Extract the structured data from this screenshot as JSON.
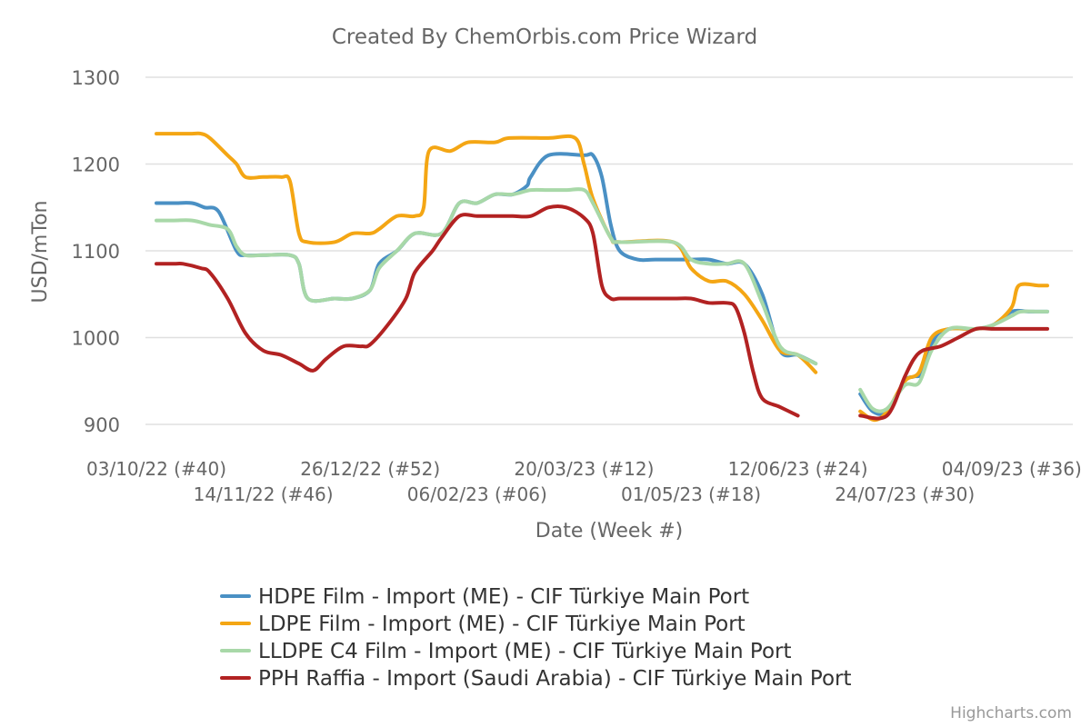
{
  "chart_data": {
    "type": "line",
    "title": "Created By ChemOrbis.com Price Wizard",
    "xlabel": "Date (Week #)",
    "ylabel": "USD/mTon",
    "ylim": [
      900,
      1300
    ],
    "yticks": [
      900,
      1000,
      1100,
      1200,
      1300
    ],
    "grid": true,
    "legend_position": "bottom-center",
    "credits": "Highcharts.com",
    "x_tick_labels": [
      {
        "week": 0,
        "label": "03/10/22 (#40)"
      },
      {
        "week": 6,
        "label": "14/11/22 (#46)"
      },
      {
        "week": 12,
        "label": "26/12/22 (#52)"
      },
      {
        "week": 18,
        "label": "06/02/23 (#06)"
      },
      {
        "week": 24,
        "label": "20/03/23 (#12)"
      },
      {
        "week": 30,
        "label": "01/05/23 (#18)"
      },
      {
        "week": 36,
        "label": "12/06/23 (#24)"
      },
      {
        "week": 42,
        "label": "24/07/23 (#30)"
      },
      {
        "week": 48,
        "label": "04/09/23 (#36)"
      }
    ],
    "x_range_weeks": [
      0,
      50
    ],
    "series": [
      {
        "name": "HDPE Film - Import (ME) - CIF Türkiye Main Port",
        "color": "#4a90c4",
        "points": [
          [
            0,
            1155
          ],
          [
            1,
            1155
          ],
          [
            2,
            1155
          ],
          [
            2.7,
            1150
          ],
          [
            3.5,
            1145
          ],
          [
            4.5,
            1100
          ],
          [
            5,
            1095
          ],
          [
            6,
            1095
          ],
          [
            7.5,
            1095
          ],
          [
            8,
            1085
          ],
          [
            8.5,
            1045
          ],
          [
            10,
            1045
          ],
          [
            11,
            1045
          ],
          [
            12,
            1055
          ],
          [
            12.5,
            1085
          ],
          [
            13.5,
            1100
          ],
          [
            14.5,
            1120
          ],
          [
            16,
            1120
          ],
          [
            17,
            1155
          ],
          [
            18,
            1155
          ],
          [
            19,
            1165
          ],
          [
            20,
            1165
          ],
          [
            20.8,
            1175
          ],
          [
            21,
            1185
          ],
          [
            22,
            1210
          ],
          [
            24,
            1210
          ],
          [
            24.5,
            1210
          ],
          [
            25,
            1185
          ],
          [
            25.5,
            1130
          ],
          [
            26,
            1100
          ],
          [
            27,
            1090
          ],
          [
            28,
            1090
          ],
          [
            30,
            1090
          ],
          [
            31,
            1090
          ],
          [
            32,
            1085
          ],
          [
            33,
            1085
          ],
          [
            34,
            1050
          ],
          [
            35,
            985
          ],
          [
            36,
            980
          ],
          [
            37,
            970
          ],
          null,
          [
            39.5,
            935
          ],
          [
            40.2,
            915
          ],
          [
            41,
            915
          ],
          [
            42,
            950
          ],
          [
            42.5,
            955
          ],
          [
            43,
            960
          ],
          [
            43.7,
            1000
          ],
          [
            44.5,
            1010
          ],
          [
            46,
            1010
          ],
          [
            47,
            1015
          ],
          [
            48,
            1030
          ],
          [
            49,
            1030
          ],
          [
            50,
            1030
          ]
        ]
      },
      {
        "name": "LDPE Film - Import (ME) - CIF Türkiye Main Port",
        "color": "#f4a614",
        "points": [
          [
            0,
            1235
          ],
          [
            1,
            1235
          ],
          [
            2,
            1235
          ],
          [
            2.5,
            1235
          ],
          [
            3,
            1230
          ],
          [
            4,
            1210
          ],
          [
            4.5,
            1200
          ],
          [
            5,
            1185
          ],
          [
            6,
            1185
          ],
          [
            7,
            1185
          ],
          [
            7.5,
            1180
          ],
          [
            8,
            1120
          ],
          [
            8.5,
            1110
          ],
          [
            10,
            1110
          ],
          [
            11,
            1120
          ],
          [
            12,
            1120
          ],
          [
            12.5,
            1125
          ],
          [
            13.5,
            1140
          ],
          [
            14.5,
            1140
          ],
          [
            15,
            1150
          ],
          [
            15.3,
            1215
          ],
          [
            16.5,
            1215
          ],
          [
            17.5,
            1225
          ],
          [
            19,
            1225
          ],
          [
            19.8,
            1230
          ],
          [
            22,
            1230
          ],
          [
            23.5,
            1230
          ],
          [
            24,
            1200
          ],
          [
            24.5,
            1160
          ],
          [
            25.5,
            1115
          ],
          [
            26,
            1110
          ],
          [
            29,
            1110
          ],
          [
            30,
            1080
          ],
          [
            31,
            1065
          ],
          [
            32,
            1065
          ],
          [
            33,
            1050
          ],
          [
            34,
            1020
          ],
          [
            35,
            985
          ],
          [
            36,
            980
          ],
          [
            37,
            960
          ],
          null,
          [
            39.5,
            915
          ],
          [
            40.3,
            905
          ],
          [
            41,
            915
          ],
          [
            42,
            950
          ],
          [
            42.8,
            960
          ],
          [
            43.5,
            1000
          ],
          [
            44.5,
            1010
          ],
          [
            46,
            1010
          ],
          [
            47,
            1015
          ],
          [
            48,
            1035
          ],
          [
            48.4,
            1060
          ],
          [
            49.5,
            1060
          ],
          [
            50,
            1060
          ]
        ]
      },
      {
        "name": "LLDPE C4 Film - Import (ME) - CIF Türkiye Main Port",
        "color": "#a8d8a8",
        "points": [
          [
            0,
            1135
          ],
          [
            1,
            1135
          ],
          [
            2,
            1135
          ],
          [
            3,
            1130
          ],
          [
            4,
            1125
          ],
          [
            4.5,
            1105
          ],
          [
            5,
            1095
          ],
          [
            6,
            1095
          ],
          [
            7.5,
            1095
          ],
          [
            8,
            1085
          ],
          [
            8.5,
            1045
          ],
          [
            10,
            1045
          ],
          [
            11,
            1045
          ],
          [
            12,
            1055
          ],
          [
            12.5,
            1080
          ],
          [
            13.5,
            1100
          ],
          [
            14.5,
            1120
          ],
          [
            16,
            1120
          ],
          [
            17,
            1155
          ],
          [
            18,
            1155
          ],
          [
            19,
            1165
          ],
          [
            20,
            1165
          ],
          [
            21,
            1170
          ],
          [
            22,
            1170
          ],
          [
            23,
            1170
          ],
          [
            24,
            1170
          ],
          [
            24.5,
            1155
          ],
          [
            25.5,
            1115
          ],
          [
            26,
            1110
          ],
          [
            29,
            1110
          ],
          [
            30,
            1090
          ],
          [
            31,
            1085
          ],
          [
            32,
            1085
          ],
          [
            33,
            1085
          ],
          [
            34,
            1040
          ],
          [
            35,
            990
          ],
          [
            36,
            980
          ],
          [
            37,
            970
          ],
          null,
          [
            39.5,
            940
          ],
          [
            40.2,
            918
          ],
          [
            41,
            918
          ],
          [
            42,
            945
          ],
          [
            42.8,
            948
          ],
          [
            43.5,
            985
          ],
          [
            44.5,
            1010
          ],
          [
            46,
            1010
          ],
          [
            47,
            1015
          ],
          [
            48,
            1025
          ],
          [
            48.5,
            1030
          ],
          [
            49.5,
            1030
          ],
          [
            50,
            1030
          ]
        ]
      },
      {
        "name": "PPH Raffia - Import (Saudi Arabia) - CIF Türkiye Main Port",
        "color": "#b22222",
        "points": [
          [
            0,
            1085
          ],
          [
            1,
            1085
          ],
          [
            1.5,
            1085
          ],
          [
            2.5,
            1080
          ],
          [
            3,
            1075
          ],
          [
            4,
            1045
          ],
          [
            5,
            1005
          ],
          [
            6,
            985
          ],
          [
            7,
            980
          ],
          [
            8,
            970
          ],
          [
            8.8,
            962
          ],
          [
            9.5,
            975
          ],
          [
            10.5,
            990
          ],
          [
            11.5,
            990
          ],
          [
            12,
            992
          ],
          [
            13,
            1015
          ],
          [
            14,
            1045
          ],
          [
            14.5,
            1075
          ],
          [
            15.5,
            1100
          ],
          [
            16,
            1115
          ],
          [
            17,
            1140
          ],
          [
            18,
            1140
          ],
          [
            19,
            1140
          ],
          [
            20,
            1140
          ],
          [
            21,
            1140
          ],
          [
            22,
            1150
          ],
          [
            23,
            1150
          ],
          [
            24,
            1138
          ],
          [
            24.5,
            1120
          ],
          [
            25,
            1060
          ],
          [
            25.5,
            1045
          ],
          [
            26,
            1045
          ],
          [
            27,
            1045
          ],
          [
            29,
            1045
          ],
          [
            30,
            1045
          ],
          [
            31,
            1040
          ],
          [
            32,
            1040
          ],
          [
            32.5,
            1035
          ],
          [
            33,
            1005
          ],
          [
            33.5,
            960
          ],
          [
            34,
            930
          ],
          [
            35,
            920
          ],
          [
            36,
            910
          ],
          null,
          [
            39.5,
            910
          ],
          [
            41,
            910
          ],
          [
            42,
            955
          ],
          [
            42.5,
            975
          ],
          [
            43,
            985
          ],
          [
            44,
            990
          ],
          [
            45,
            1000
          ],
          [
            46,
            1010
          ],
          [
            47,
            1010
          ],
          [
            48,
            1010
          ],
          [
            49,
            1010
          ],
          [
            50,
            1010
          ]
        ]
      }
    ]
  }
}
